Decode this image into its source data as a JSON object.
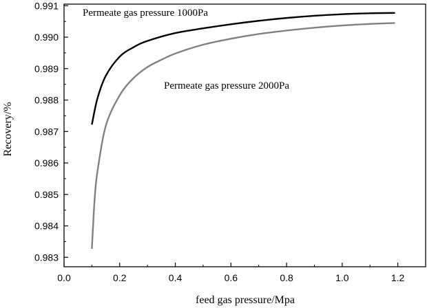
{
  "chart_data": {
    "type": "line",
    "xlabel": "feed gas pressure/Mpa",
    "ylabel": "Recovery/%",
    "xlim": [
      0.0,
      1.3
    ],
    "ylim": [
      0.9827,
      0.99105
    ],
    "xticks": [
      "0.0",
      "0.2",
      "0.4",
      "0.6",
      "0.8",
      "1.0",
      "1.2"
    ],
    "yticks": [
      "0.983",
      "0.984",
      "0.985",
      "0.986",
      "0.987",
      "0.988",
      "0.989",
      "0.990",
      "0.991"
    ],
    "grid": false,
    "series": [
      {
        "name": "Permeate gas pressure 1000Pa",
        "color": "#000000",
        "x": [
          0.1,
          0.12,
          0.15,
          0.2,
          0.25,
          0.3,
          0.4,
          0.5,
          0.6,
          0.7,
          0.8,
          0.9,
          1.0,
          1.1,
          1.19
        ],
        "y": [
          0.98722,
          0.98805,
          0.98877,
          0.98938,
          0.98968,
          0.98988,
          0.99013,
          0.99028,
          0.99041,
          0.99052,
          0.99061,
          0.99068,
          0.99073,
          0.99076,
          0.99077
        ]
      },
      {
        "name": "Permeate gas pressure 2000Pa",
        "color": "#808080",
        "x": [
          0.1,
          0.11,
          0.12,
          0.15,
          0.2,
          0.25,
          0.3,
          0.35,
          0.4,
          0.5,
          0.6,
          0.7,
          0.8,
          0.9,
          1.0,
          1.1,
          1.19
        ],
        "y": [
          0.98327,
          0.98485,
          0.98572,
          0.98718,
          0.98815,
          0.9887,
          0.98905,
          0.98928,
          0.98948,
          0.98976,
          0.98995,
          0.9901,
          0.99021,
          0.9903,
          0.99037,
          0.99042,
          0.99045
        ]
      }
    ]
  }
}
